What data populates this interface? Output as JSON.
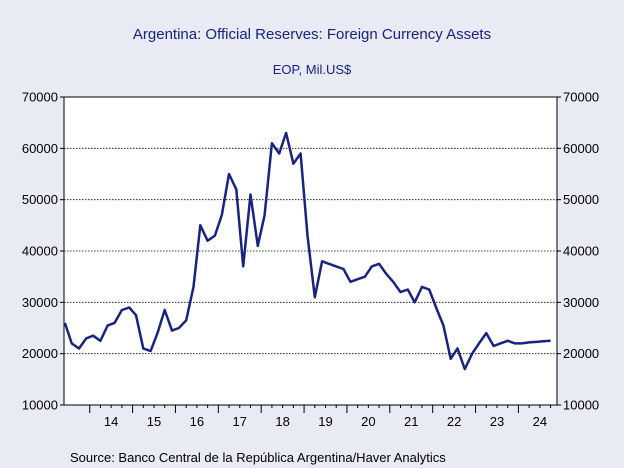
{
  "chart_data": {
    "type": "line",
    "title": "Argentina: Official Reserves: Foreign Currency Assets",
    "subtitle": "EOP, Mil.US$",
    "xlabel": "",
    "ylabel": "",
    "source": "Source:  Banco Central de la República Argentina/Haver Analytics",
    "ylim": [
      10000,
      70000
    ],
    "xlim": [
      2013.4,
      2024.9
    ],
    "y_ticks": [
      10000,
      20000,
      30000,
      40000,
      50000,
      60000,
      70000
    ],
    "x_tick_labels": [
      "14",
      "15",
      "16",
      "17",
      "18",
      "19",
      "20",
      "21",
      "22",
      "23",
      "24"
    ],
    "grid": true,
    "series_color": "#1a237e",
    "series": [
      {
        "x": [
          2013.42,
          2013.58,
          2013.75,
          2013.92,
          2014.08,
          2014.25,
          2014.42,
          2014.58,
          2014.75,
          2014.92,
          2015.08,
          2015.25,
          2015.42,
          2015.58,
          2015.75,
          2015.92,
          2016.08,
          2016.25,
          2016.42,
          2016.58,
          2016.75,
          2016.92,
          2017.08,
          2017.25,
          2017.42,
          2017.58,
          2017.75,
          2017.92,
          2018.08,
          2018.25,
          2018.42,
          2018.58,
          2018.75,
          2018.92,
          2019.08,
          2019.25,
          2019.42,
          2019.58,
          2019.75,
          2019.92,
          2020.08,
          2020.25,
          2020.42,
          2020.58,
          2020.75,
          2020.92,
          2021.08,
          2021.25,
          2021.42,
          2021.58,
          2021.75,
          2021.92,
          2022.08,
          2022.25,
          2022.42,
          2022.58,
          2022.75,
          2022.92,
          2023.08,
          2023.25,
          2023.42,
          2023.58,
          2023.75,
          2023.92,
          2024.08,
          2024.25,
          2024.42,
          2024.58,
          2024.75
        ],
        "y": [
          26000,
          22000,
          21000,
          23000,
          23500,
          22500,
          25500,
          26000,
          28500,
          29000,
          27500,
          21000,
          20500,
          24000,
          28500,
          24500,
          25000,
          26500,
          33000,
          45000,
          42000,
          43000,
          47000,
          55000,
          52000,
          37000,
          51000,
          41000,
          47000,
          61000,
          59000,
          63000,
          57000,
          59000,
          43000,
          31000,
          38000,
          37500,
          37000,
          36500,
          34000,
          34500,
          35000,
          37000,
          37500,
          35500,
          34000,
          32000,
          32500,
          30000,
          33000,
          32500,
          29000,
          25500,
          19000,
          21000,
          17000,
          20000,
          22000,
          24000,
          21500,
          22000,
          22500,
          22000,
          22000,
          22200,
          22300,
          22400,
          22500
        ]
      }
    ]
  }
}
